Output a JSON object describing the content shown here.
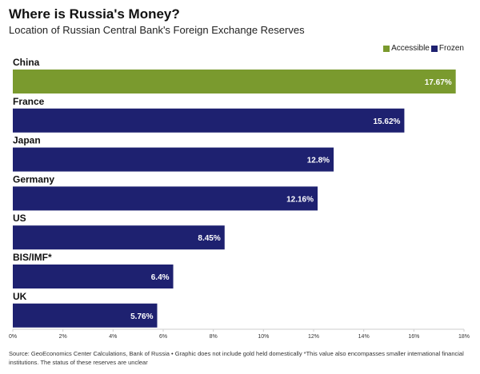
{
  "header": {
    "title": "Where is Russia's Money?",
    "subtitle": "Location of Russian Central Bank's Foreign Exchange Reserves"
  },
  "legend": {
    "accessible_label": "Accessible",
    "frozen_label": "Frozen"
  },
  "colors": {
    "accessible": "#7a9a2e",
    "frozen": "#1e2170",
    "axis": "#cccccc"
  },
  "chart_data": {
    "type": "bar",
    "orientation": "horizontal",
    "title": "Where is Russia's Money?",
    "subtitle": "Location of Russian Central Bank's Foreign Exchange Reserves",
    "categories": [
      "China",
      "France",
      "Japan",
      "Germany",
      "US",
      "BIS/IMF*",
      "UK"
    ],
    "values": [
      17.67,
      15.62,
      12.8,
      12.16,
      8.45,
      6.4,
      5.76
    ],
    "value_labels": [
      "17.67%",
      "15.62%",
      "12.8%",
      "12.16%",
      "8.45%",
      "6.4%",
      "5.76%"
    ],
    "status": [
      "Accessible",
      "Frozen",
      "Frozen",
      "Frozen",
      "Frozen",
      "Frozen",
      "Frozen"
    ],
    "series": [
      {
        "name": "Accessible"
      },
      {
        "name": "Frozen"
      }
    ],
    "xlim": [
      0,
      18
    ],
    "xticks": [
      "0%",
      "2%",
      "4%",
      "6%",
      "8%",
      "10%",
      "12%",
      "14%",
      "16%",
      "18%"
    ],
    "legend_position": "top-right",
    "grid": false
  },
  "footer": {
    "source": "Source: GeoEconomics Center Calculations, Bank of Russia • Graphic does not include gold held domestically *This value also encompasses smaller international financial institutions. The status of these reserves are unclear"
  }
}
